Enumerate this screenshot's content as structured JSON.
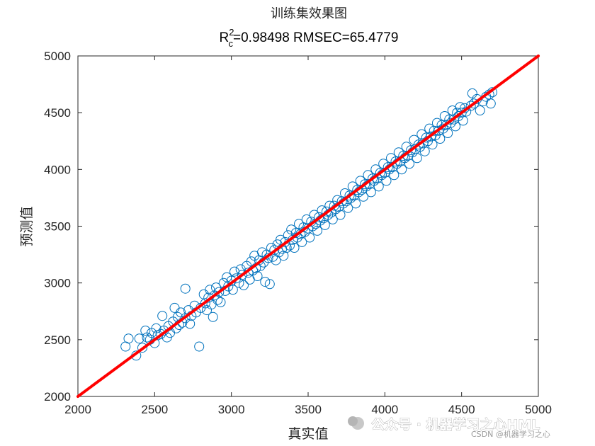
{
  "chart_data": {
    "type": "scatter",
    "title": "训练集效果图",
    "subtitle": {
      "r_base": "R",
      "r_sup": "2",
      "r_sub": "c",
      "rest": "=0.98498  RMSEC=65.4779"
    },
    "xlabel": "真实值",
    "ylabel": "预测值",
    "xlim": [
      2000,
      5000
    ],
    "ylim": [
      2000,
      5000
    ],
    "x_ticks": [
      2000,
      2500,
      3000,
      3500,
      4000,
      4500,
      5000
    ],
    "y_ticks": [
      2000,
      2500,
      3000,
      3500,
      4000,
      4500,
      5000
    ],
    "grid": false,
    "legend": "none",
    "marker": "open circle",
    "colors": {
      "points": "#0072BD",
      "reference_line": "#FF0000",
      "axes": "#262626"
    },
    "reference_line": {
      "name": "",
      "points": [
        [
          2000,
          2000
        ],
        [
          5000,
          5000
        ]
      ]
    },
    "series": [
      {
        "name": "",
        "points": [
          [
            2310,
            2440
          ],
          [
            2330,
            2510
          ],
          [
            2380,
            2360
          ],
          [
            2400,
            2510
          ],
          [
            2420,
            2430
          ],
          [
            2440,
            2580
          ],
          [
            2450,
            2520
          ],
          [
            2470,
            2500
          ],
          [
            2480,
            2560
          ],
          [
            2500,
            2470
          ],
          [
            2510,
            2600
          ],
          [
            2520,
            2540
          ],
          [
            2540,
            2550
          ],
          [
            2550,
            2710
          ],
          [
            2560,
            2580
          ],
          [
            2580,
            2520
          ],
          [
            2590,
            2620
          ],
          [
            2600,
            2560
          ],
          [
            2620,
            2660
          ],
          [
            2630,
            2780
          ],
          [
            2640,
            2600
          ],
          [
            2650,
            2700
          ],
          [
            2660,
            2630
          ],
          [
            2670,
            2740
          ],
          [
            2680,
            2650
          ],
          [
            2700,
            2950
          ],
          [
            2700,
            2690
          ],
          [
            2720,
            2760
          ],
          [
            2730,
            2640
          ],
          [
            2740,
            2710
          ],
          [
            2760,
            2800
          ],
          [
            2770,
            2740
          ],
          [
            2790,
            2440
          ],
          [
            2800,
            2780
          ],
          [
            2820,
            2900
          ],
          [
            2830,
            2820
          ],
          [
            2840,
            2760
          ],
          [
            2850,
            2870
          ],
          [
            2860,
            2940
          ],
          [
            2870,
            2810
          ],
          [
            2880,
            2700
          ],
          [
            2890,
            2890
          ],
          [
            2900,
            2960
          ],
          [
            2910,
            2850
          ],
          [
            2920,
            2920
          ],
          [
            2930,
            2830
          ],
          [
            2950,
            3000
          ],
          [
            2960,
            2930
          ],
          [
            2970,
            3050
          ],
          [
            2980,
            2970
          ],
          [
            3000,
            3020
          ],
          [
            3010,
            2940
          ],
          [
            3020,
            3100
          ],
          [
            3030,
            3040
          ],
          [
            3050,
            3000
          ],
          [
            3060,
            3120
          ],
          [
            3070,
            3070
          ],
          [
            3080,
            2980
          ],
          [
            3100,
            3150
          ],
          [
            3110,
            3090
          ],
          [
            3120,
            3030
          ],
          [
            3130,
            3190
          ],
          [
            3140,
            3110
          ],
          [
            3150,
            3240
          ],
          [
            3160,
            3130
          ],
          [
            3170,
            3060
          ],
          [
            3180,
            3200
          ],
          [
            3190,
            3150
          ],
          [
            3200,
            3270
          ],
          [
            3210,
            3180
          ],
          [
            3220,
            3010
          ],
          [
            3230,
            3250
          ],
          [
            3240,
            3220
          ],
          [
            3250,
            2990
          ],
          [
            3260,
            3310
          ],
          [
            3270,
            3230
          ],
          [
            3280,
            3290
          ],
          [
            3290,
            3200
          ],
          [
            3300,
            3340
          ],
          [
            3310,
            3270
          ],
          [
            3320,
            3380
          ],
          [
            3330,
            3300
          ],
          [
            3340,
            3240
          ],
          [
            3350,
            3360
          ],
          [
            3360,
            3310
          ],
          [
            3370,
            3420
          ],
          [
            3380,
            3330
          ],
          [
            3390,
            3470
          ],
          [
            3400,
            3380
          ],
          [
            3410,
            3310
          ],
          [
            3420,
            3440
          ],
          [
            3430,
            3400
          ],
          [
            3440,
            3520
          ],
          [
            3450,
            3430
          ],
          [
            3460,
            3360
          ],
          [
            3470,
            3490
          ],
          [
            3480,
            3450
          ],
          [
            3490,
            3560
          ],
          [
            3500,
            3480
          ],
          [
            3510,
            3400
          ],
          [
            3520,
            3540
          ],
          [
            3530,
            3500
          ],
          [
            3540,
            3600
          ],
          [
            3550,
            3520
          ],
          [
            3560,
            3460
          ],
          [
            3570,
            3580
          ],
          [
            3580,
            3550
          ],
          [
            3590,
            3640
          ],
          [
            3600,
            3570
          ],
          [
            3610,
            3510
          ],
          [
            3620,
            3630
          ],
          [
            3630,
            3600
          ],
          [
            3640,
            3680
          ],
          [
            3650,
            3620
          ],
          [
            3660,
            3560
          ],
          [
            3670,
            3680
          ],
          [
            3680,
            3650
          ],
          [
            3690,
            3730
          ],
          [
            3700,
            3670
          ],
          [
            3710,
            3600
          ],
          [
            3720,
            3720
          ],
          [
            3730,
            3700
          ],
          [
            3740,
            3790
          ],
          [
            3750,
            3720
          ],
          [
            3760,
            3660
          ],
          [
            3770,
            3770
          ],
          [
            3780,
            3750
          ],
          [
            3790,
            3850
          ],
          [
            3800,
            3770
          ],
          [
            3810,
            3700
          ],
          [
            3820,
            3820
          ],
          [
            3830,
            3800
          ],
          [
            3840,
            3900
          ],
          [
            3850,
            3820
          ],
          [
            3860,
            3760
          ],
          [
            3870,
            3870
          ],
          [
            3880,
            3850
          ],
          [
            3890,
            3950
          ],
          [
            3900,
            3870
          ],
          [
            3910,
            3800
          ],
          [
            3920,
            3920
          ],
          [
            3930,
            3900
          ],
          [
            3940,
            4000
          ],
          [
            3950,
            3920
          ],
          [
            3960,
            3850
          ],
          [
            3970,
            3970
          ],
          [
            3980,
            3950
          ],
          [
            3990,
            4050
          ],
          [
            4000,
            3970
          ],
          [
            4010,
            3900
          ],
          [
            4020,
            4020
          ],
          [
            4030,
            4000
          ],
          [
            4040,
            4100
          ],
          [
            4050,
            4020
          ],
          [
            4060,
            3950
          ],
          [
            4070,
            4070
          ],
          [
            4080,
            4050
          ],
          [
            4090,
            4150
          ],
          [
            4100,
            4070
          ],
          [
            4110,
            4000
          ],
          [
            4120,
            4120
          ],
          [
            4130,
            4100
          ],
          [
            4140,
            4200
          ],
          [
            4150,
            4120
          ],
          [
            4160,
            4050
          ],
          [
            4170,
            4170
          ],
          [
            4180,
            4150
          ],
          [
            4190,
            4260
          ],
          [
            4200,
            4180
          ],
          [
            4210,
            4100
          ],
          [
            4220,
            4220
          ],
          [
            4230,
            4200
          ],
          [
            4240,
            4310
          ],
          [
            4250,
            4230
          ],
          [
            4260,
            4160
          ],
          [
            4270,
            4280
          ],
          [
            4280,
            4250
          ],
          [
            4290,
            4360
          ],
          [
            4300,
            4290
          ],
          [
            4310,
            4220
          ],
          [
            4320,
            4340
          ],
          [
            4330,
            4300
          ],
          [
            4340,
            4410
          ],
          [
            4350,
            4340
          ],
          [
            4360,
            4270
          ],
          [
            4370,
            4390
          ],
          [
            4380,
            4360
          ],
          [
            4390,
            4470
          ],
          [
            4400,
            4390
          ],
          [
            4410,
            4320
          ],
          [
            4420,
            4440
          ],
          [
            4430,
            4410
          ],
          [
            4440,
            4520
          ],
          [
            4450,
            4440
          ],
          [
            4460,
            4380
          ],
          [
            4470,
            4500
          ],
          [
            4480,
            4470
          ],
          [
            4490,
            4550
          ],
          [
            4500,
            4500
          ],
          [
            4510,
            4430
          ],
          [
            4520,
            4540
          ],
          [
            4530,
            4510
          ],
          [
            4560,
            4560
          ],
          [
            4570,
            4670
          ],
          [
            4580,
            4580
          ],
          [
            4600,
            4620
          ],
          [
            4620,
            4520
          ],
          [
            4640,
            4600
          ],
          [
            4660,
            4640
          ],
          [
            4680,
            4660
          ],
          [
            4690,
            4580
          ],
          [
            4700,
            4680
          ]
        ]
      }
    ]
  },
  "watermark": {
    "main": "公众号 · 机器学习之心HML",
    "sub": "CSDN @机器学习之心"
  }
}
